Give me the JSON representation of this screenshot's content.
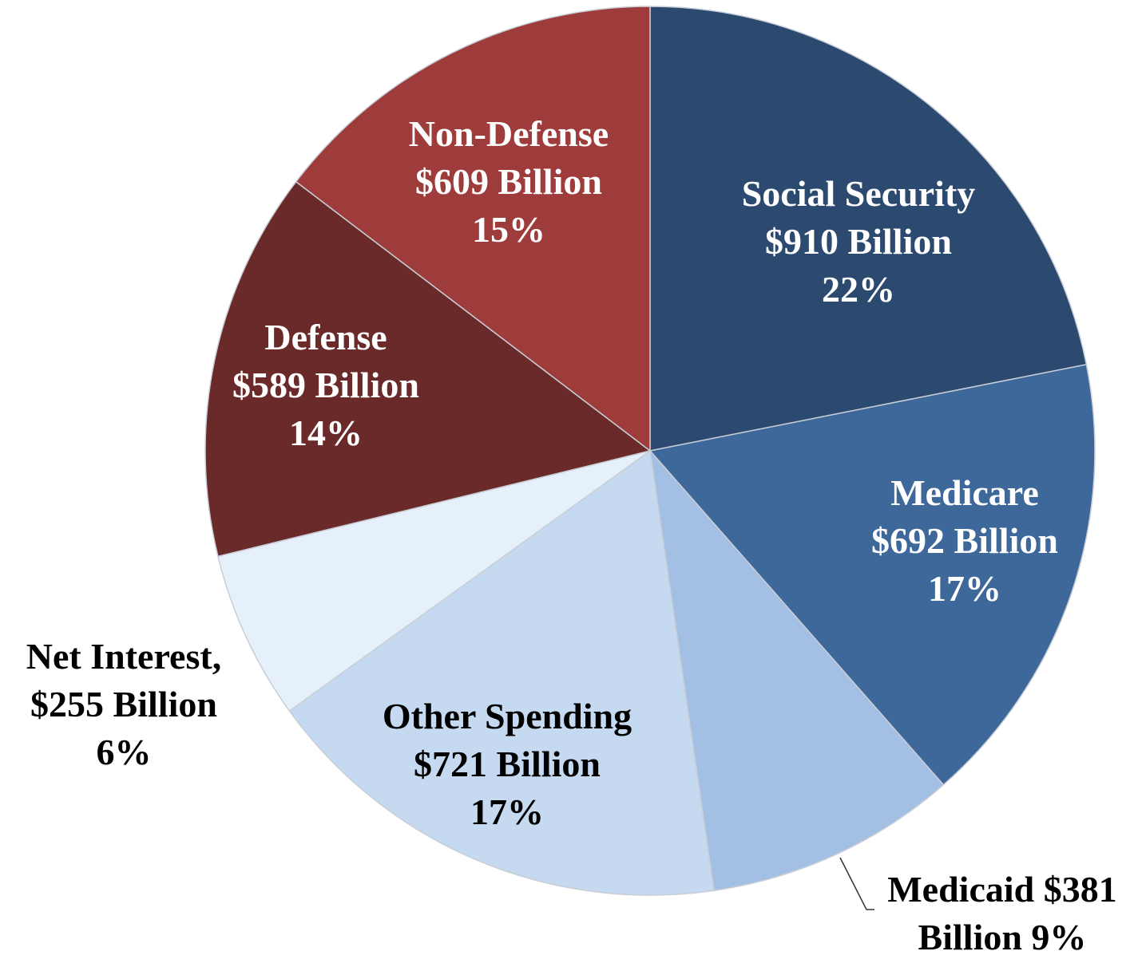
{
  "chart_data": {
    "type": "pie",
    "title": "",
    "start_angle_deg": 0,
    "direction": "clockwise",
    "slices": [
      {
        "name": "Social Security",
        "value": 910,
        "percent": 22,
        "color": "#2c4a70",
        "text_color": "#ffffff",
        "lines": [
          "Social Security",
          "$910 Billion",
          "22%"
        ],
        "label_position": "inside"
      },
      {
        "name": "Medicare",
        "value": 692,
        "percent": 17,
        "color": "#3d6899",
        "text_color": "#ffffff",
        "lines": [
          "Medicare",
          "$692 Billion",
          "17%"
        ],
        "label_position": "inside"
      },
      {
        "name": "Medicaid",
        "value": 381,
        "percent": 9,
        "color": "#a3bfe3",
        "text_color": "#000000",
        "lines": [
          "Medicaid $381",
          "Billion 9%"
        ],
        "label_position": "outside"
      },
      {
        "name": "Other Spending",
        "value": 721,
        "percent": 17,
        "color": "#c5d9f1",
        "text_color": "#000000",
        "lines": [
          "Other Spending",
          "$721 Billion",
          "17%"
        ],
        "label_position": "inside"
      },
      {
        "name": "Net Interest",
        "value": 255,
        "percent": 6,
        "color": "#e6f0fb",
        "text_color": "#000000",
        "lines": [
          "Net Interest,",
          "$255 Billion",
          "6%"
        ],
        "label_position": "outside"
      },
      {
        "name": "Defense",
        "value": 589,
        "percent": 14,
        "color": "#6b2a2a",
        "text_color": "#ffffff",
        "lines": [
          "Defense",
          "$589 Billion",
          "14%"
        ],
        "label_position": "inside"
      },
      {
        "name": "Non-Defense",
        "value": 609,
        "percent": 15,
        "color": "#9e3c3b",
        "text_color": "#ffffff",
        "lines": [
          "Non-Defense",
          "$609 Billion",
          "15%"
        ],
        "label_position": "inside"
      }
    ]
  }
}
